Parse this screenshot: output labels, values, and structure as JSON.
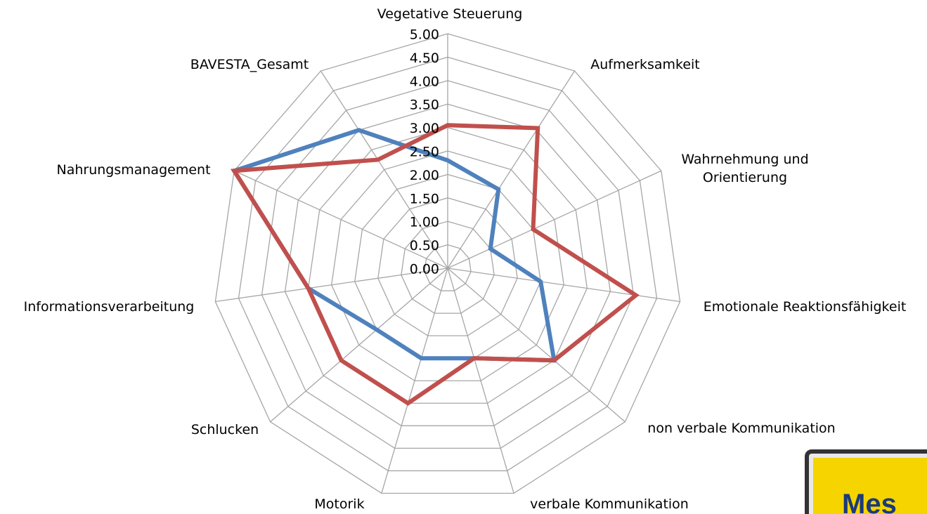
{
  "chart_data": {
    "type": "radar",
    "categories": [
      "Vegetative Steuerung",
      "Aufmerksamkeit",
      "Wahrnehmung und Orientierung",
      "Emotionale Reaktionsfähigkeit",
      "non verbale Kommunikation",
      "verbale Kommunikation",
      "Motorik",
      "Schlucken",
      "Informationsverarbeitung",
      "Nahrungsmanagement",
      "BAVESTA_Gesamt"
    ],
    "series": [
      {
        "color": "#4f81bd",
        "values": [
          2.3,
          2.0,
          1.0,
          2.0,
          3.0,
          2.0,
          2.0,
          2.0,
          3.0,
          5.0,
          3.5
        ]
      },
      {
        "color": "#c0504d",
        "values": [
          3.05,
          3.55,
          2.0,
          4.05,
          3.0,
          2.0,
          3.0,
          3.0,
          3.0,
          5.0,
          2.75
        ]
      }
    ],
    "ylim": [
      0,
      5
    ],
    "yticks": [
      {
        "value": 0,
        "label": "0.00"
      },
      {
        "value": 0.5,
        "label": "0.50"
      },
      {
        "value": 1,
        "label": "1.00"
      },
      {
        "value": 1.5,
        "label": "1.50"
      },
      {
        "value": 2,
        "label": "2.00"
      },
      {
        "value": 2.5,
        "label": "2.50"
      },
      {
        "value": 3,
        "label": "3.00"
      },
      {
        "value": 3.5,
        "label": "3.50"
      },
      {
        "value": 4,
        "label": "4.00"
      },
      {
        "value": 4.5,
        "label": "4.50"
      },
      {
        "value": 5,
        "label": "5.00"
      }
    ],
    "grid": true
  },
  "badge": {
    "text": "Mes"
  }
}
